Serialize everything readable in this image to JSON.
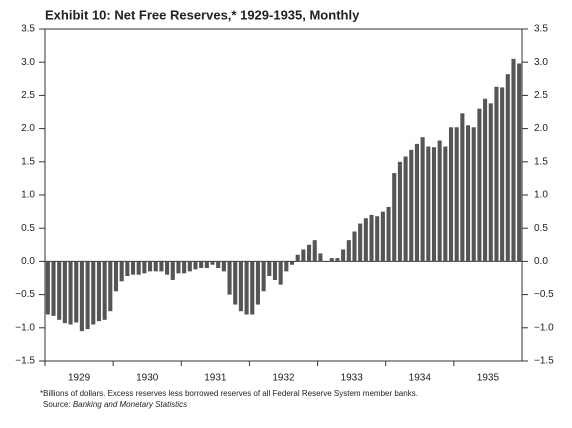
{
  "chart_data": {
    "type": "bar",
    "title": "Exhibit 10: Net Free Reserves,* 1929-1935, Monthly",
    "footnote": "*Billions of dollars. Excess reserves less borrowed reserves of all Federal Reserve System member banks.",
    "source_label": "Source:",
    "source": "Banking and Monetary Statistics",
    "categories": [
      null,
      null,
      null,
      null,
      null,
      null,
      "1929",
      null,
      null,
      null,
      null,
      null,
      null,
      null,
      null,
      null,
      null,
      null,
      "1930",
      null,
      null,
      null,
      null,
      null,
      null,
      null,
      null,
      null,
      null,
      null,
      "1931",
      null,
      null,
      null,
      null,
      null,
      null,
      null,
      null,
      null,
      null,
      null,
      "1932",
      null,
      null,
      null,
      null,
      null,
      null,
      null,
      null,
      null,
      null,
      null,
      "1933",
      null,
      null,
      null,
      null,
      null,
      null,
      null,
      null,
      null,
      null,
      null,
      "1934",
      null,
      null,
      null,
      null,
      null,
      null,
      null,
      null,
      null,
      null,
      null,
      "1935",
      null,
      null,
      null,
      null,
      null
    ],
    "values": [
      -0.8,
      -0.82,
      -0.88,
      -0.93,
      -0.95,
      -0.92,
      -1.05,
      -1.02,
      -0.95,
      -0.9,
      -0.88,
      -0.75,
      -0.45,
      -0.3,
      -0.22,
      -0.2,
      -0.2,
      -0.18,
      -0.15,
      -0.15,
      -0.15,
      -0.2,
      -0.28,
      -0.18,
      -0.18,
      -0.15,
      -0.12,
      -0.1,
      -0.1,
      -0.05,
      -0.1,
      -0.15,
      -0.5,
      -0.65,
      -0.75,
      -0.8,
      -0.8,
      -0.65,
      -0.45,
      -0.22,
      -0.28,
      -0.35,
      -0.15,
      -0.05,
      0.1,
      0.18,
      0.25,
      0.32,
      0.12,
      0,
      0.05,
      0.05,
      0.18,
      0.32,
      0.45,
      0.57,
      0.65,
      0.7,
      0.68,
      0.75,
      0.82,
      1.33,
      1.5,
      1.58,
      1.68,
      1.77,
      1.87,
      1.73,
      1.72,
      1.82,
      1.73,
      2.02,
      2.02,
      2.23,
      2.05,
      2.02,
      2.3,
      2.45,
      2.38,
      2.63,
      2.62,
      2.82,
      3.05,
      2.98
    ],
    "color": "#555555",
    "ylim": [
      -1.5,
      3.5
    ],
    "yticks": [
      {
        "value": -1.5,
        "label": "−1.5"
      },
      {
        "value": -1,
        "label": "−1.0"
      },
      {
        "value": -0.5,
        "label": "−0.5"
      },
      {
        "value": 0,
        "label": "0.0"
      },
      0.5,
      {
        "value": 1,
        "label": "1.0"
      },
      1.5,
      {
        "value": 2,
        "label": "2.0"
      },
      2.5,
      {
        "value": 3,
        "label": "3.0"
      },
      3.5
    ],
    "grid": false
  }
}
